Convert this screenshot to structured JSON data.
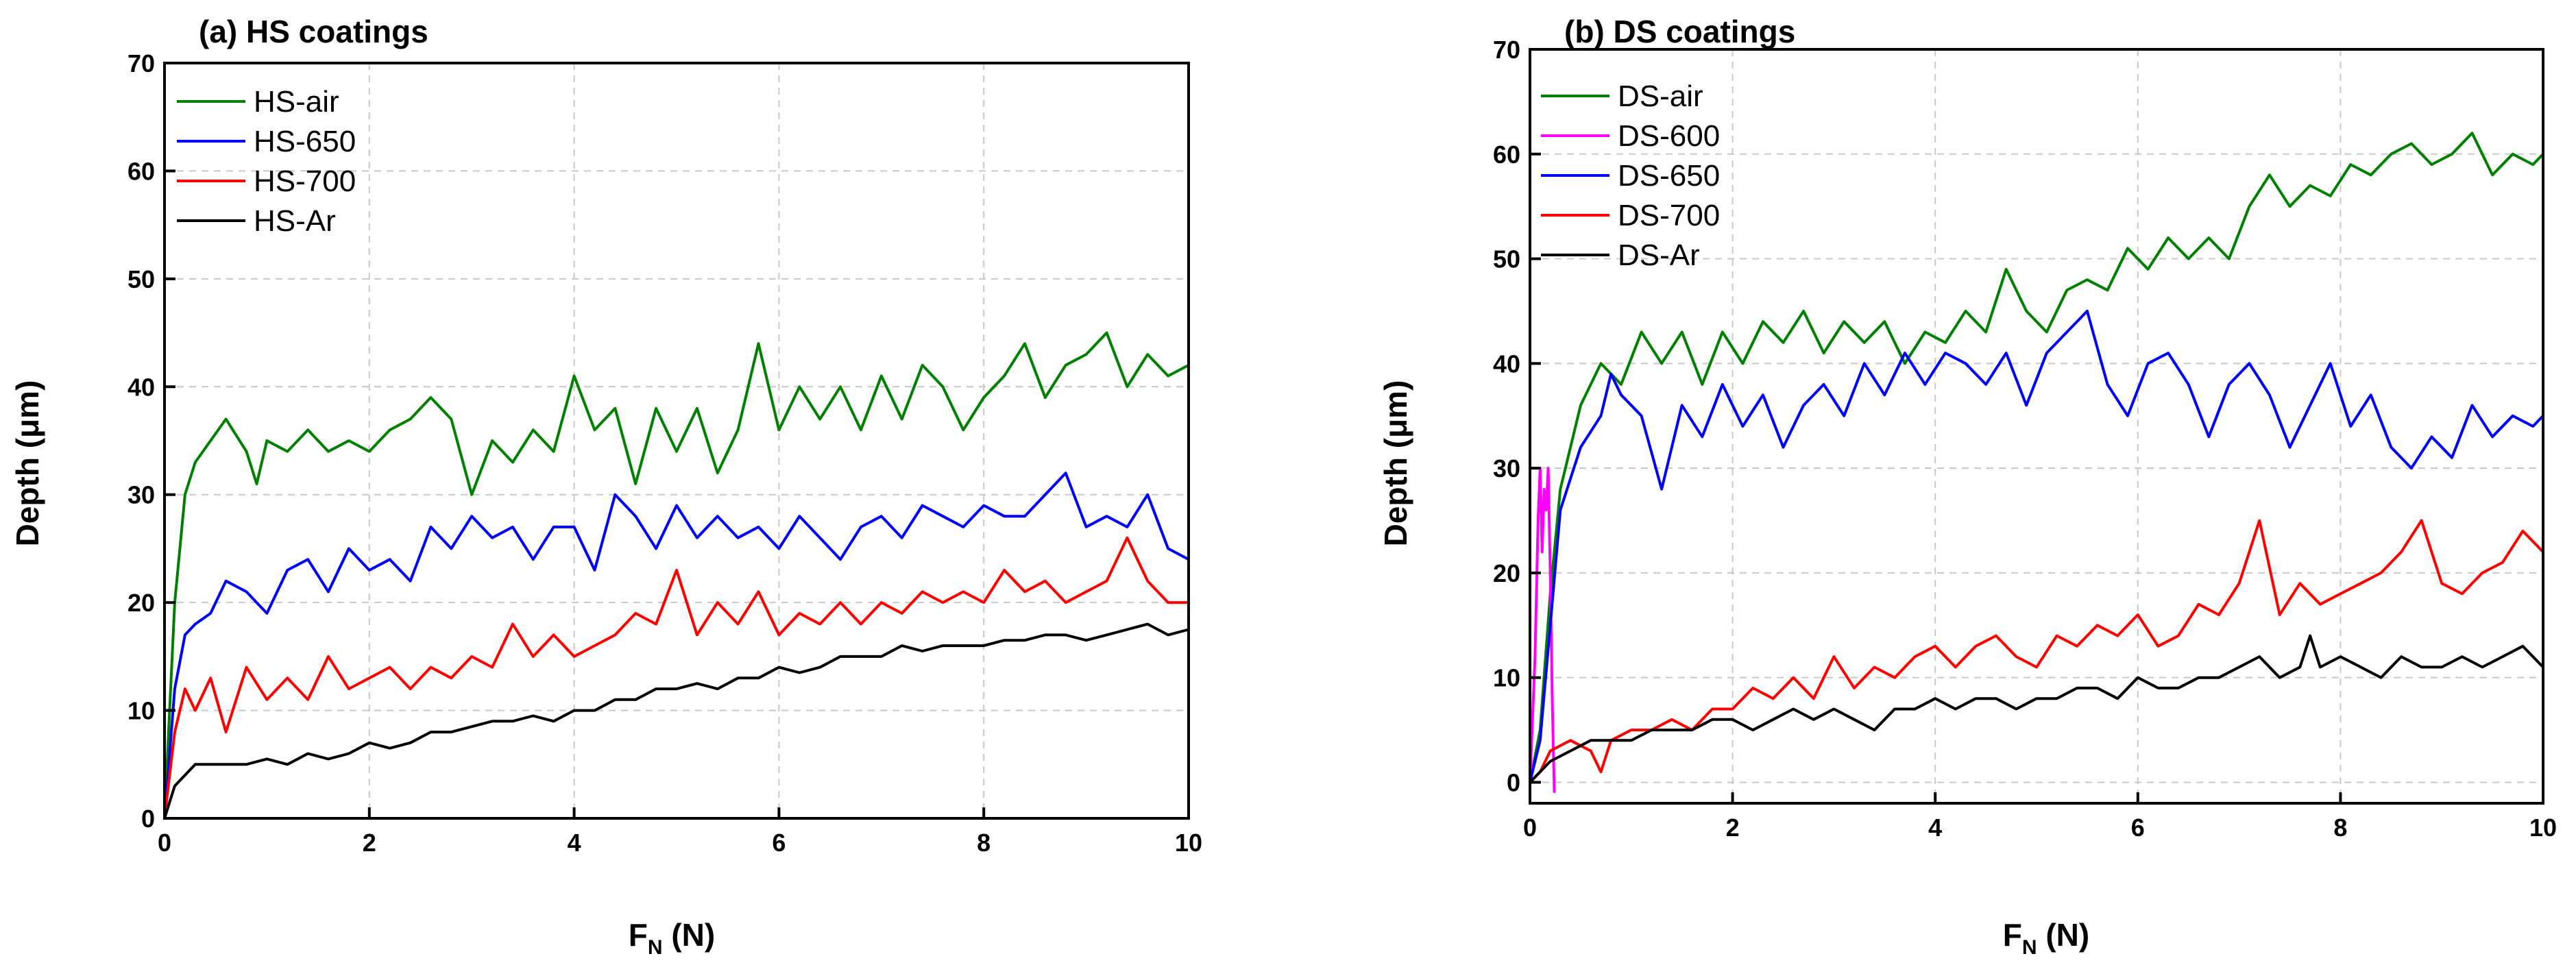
{
  "chart_data": [
    {
      "type": "line",
      "title": "(a) HS coatings",
      "xlabel": "F",
      "xlabel_sub": "N",
      "xlabel_unit": " (N)",
      "ylabel": "Depth (μm)",
      "xlim": [
        0,
        10
      ],
      "ylim": [
        0,
        70
      ],
      "xticks": [
        "0",
        "2",
        "4",
        "6",
        "8",
        "10"
      ],
      "yticks": [
        "0",
        "10",
        "20",
        "30",
        "40",
        "50",
        "60",
        "70"
      ],
      "grid": true,
      "legend_position": "top-left",
      "series": [
        {
          "name": "HS-air",
          "color": "#008000",
          "x": [
            0,
            0.1,
            0.2,
            0.3,
            0.45,
            0.6,
            0.8,
            0.9,
            1.0,
            1.2,
            1.4,
            1.6,
            1.8,
            2.0,
            2.2,
            2.4,
            2.6,
            2.8,
            3.0,
            3.2,
            3.4,
            3.6,
            3.8,
            4.0,
            4.2,
            4.4,
            4.6,
            4.8,
            5.0,
            5.2,
            5.4,
            5.6,
            5.8,
            6.0,
            6.2,
            6.4,
            6.6,
            6.8,
            7.0,
            7.2,
            7.4,
            7.6,
            7.8,
            8.0,
            8.2,
            8.4,
            8.6,
            8.8,
            9.0,
            9.2,
            9.4,
            9.6,
            9.8,
            10.0
          ],
          "y": [
            0,
            20,
            30,
            33,
            35,
            37,
            34,
            31,
            35,
            34,
            36,
            34,
            35,
            34,
            36,
            37,
            39,
            37,
            30,
            35,
            33,
            36,
            34,
            41,
            36,
            38,
            31,
            38,
            34,
            38,
            32,
            36,
            44,
            36,
            40,
            37,
            40,
            36,
            41,
            37,
            42,
            40,
            36,
            39,
            41,
            44,
            39,
            42,
            43,
            45,
            40,
            43,
            41,
            42
          ]
        },
        {
          "name": "HS-650",
          "color": "#0000ff",
          "x": [
            0,
            0.1,
            0.2,
            0.3,
            0.45,
            0.6,
            0.8,
            1.0,
            1.2,
            1.4,
            1.6,
            1.8,
            2.0,
            2.2,
            2.4,
            2.6,
            2.8,
            3.0,
            3.2,
            3.4,
            3.6,
            3.8,
            4.0,
            4.2,
            4.4,
            4.6,
            4.8,
            5.0,
            5.2,
            5.4,
            5.6,
            5.8,
            6.0,
            6.2,
            6.4,
            6.6,
            6.8,
            7.0,
            7.2,
            7.4,
            7.6,
            7.8,
            8.0,
            8.2,
            8.4,
            8.6,
            8.8,
            9.0,
            9.2,
            9.4,
            9.6,
            9.8,
            10.0
          ],
          "y": [
            0,
            12,
            17,
            18,
            19,
            22,
            21,
            19,
            23,
            24,
            21,
            25,
            23,
            24,
            22,
            27,
            25,
            28,
            26,
            27,
            24,
            27,
            27,
            23,
            30,
            28,
            25,
            29,
            26,
            28,
            26,
            27,
            25,
            28,
            26,
            24,
            27,
            28,
            26,
            29,
            28,
            27,
            29,
            28,
            28,
            30,
            32,
            27,
            28,
            27,
            30,
            25,
            24
          ]
        },
        {
          "name": "HS-700",
          "color": "#ff0000",
          "x": [
            0,
            0.1,
            0.2,
            0.3,
            0.45,
            0.6,
            0.8,
            1.0,
            1.2,
            1.4,
            1.6,
            1.8,
            2.0,
            2.2,
            2.4,
            2.6,
            2.8,
            3.0,
            3.2,
            3.4,
            3.6,
            3.8,
            4.0,
            4.2,
            4.4,
            4.6,
            4.8,
            5.0,
            5.2,
            5.4,
            5.6,
            5.8,
            6.0,
            6.2,
            6.4,
            6.6,
            6.8,
            7.0,
            7.2,
            7.4,
            7.6,
            7.8,
            8.0,
            8.2,
            8.4,
            8.6,
            8.8,
            9.0,
            9.2,
            9.4,
            9.6,
            9.8,
            10.0
          ],
          "y": [
            0,
            8,
            12,
            10,
            13,
            8,
            14,
            11,
            13,
            11,
            15,
            12,
            13,
            14,
            12,
            14,
            13,
            15,
            14,
            18,
            15,
            17,
            15,
            16,
            17,
            19,
            18,
            23,
            17,
            20,
            18,
            21,
            17,
            19,
            18,
            20,
            18,
            20,
            19,
            21,
            20,
            21,
            20,
            23,
            21,
            22,
            20,
            21,
            22,
            26,
            22,
            20,
            20
          ]
        },
        {
          "name": "HS-Ar",
          "color": "#000000",
          "x": [
            0,
            0.1,
            0.2,
            0.3,
            0.45,
            0.6,
            0.8,
            1.0,
            1.2,
            1.4,
            1.6,
            1.8,
            2.0,
            2.2,
            2.4,
            2.6,
            2.8,
            3.0,
            3.2,
            3.4,
            3.6,
            3.8,
            4.0,
            4.2,
            4.4,
            4.6,
            4.8,
            5.0,
            5.2,
            5.4,
            5.6,
            5.8,
            6.0,
            6.2,
            6.4,
            6.6,
            6.8,
            7.0,
            7.2,
            7.4,
            7.6,
            7.8,
            8.0,
            8.2,
            8.4,
            8.6,
            8.8,
            9.0,
            9.2,
            9.4,
            9.6,
            9.8,
            10.0
          ],
          "y": [
            0,
            3,
            4,
            5,
            5,
            5,
            5,
            5.5,
            5,
            6,
            5.5,
            6,
            7,
            6.5,
            7,
            8,
            8,
            8.5,
            9,
            9,
            9.5,
            9,
            10,
            10,
            11,
            11,
            12,
            12,
            12.5,
            12,
            13,
            13,
            14,
            13.5,
            14,
            15,
            15,
            15,
            16,
            15.5,
            16,
            16,
            16,
            16.5,
            16.5,
            17,
            17,
            16.5,
            17,
            17.5,
            18,
            17,
            17.5
          ]
        }
      ]
    },
    {
      "type": "line",
      "title": "(b) DS coatings",
      "xlabel": "F",
      "xlabel_sub": "N",
      "xlabel_unit": " (N)",
      "ylabel": "Depth (μm)",
      "xlim": [
        0,
        10
      ],
      "ylim": [
        -2,
        70
      ],
      "xticks": [
        "0",
        "2",
        "4",
        "6",
        "8",
        "10"
      ],
      "yticks": [
        "0",
        "10",
        "20",
        "30",
        "40",
        "50",
        "60",
        "70"
      ],
      "grid": true,
      "legend_position": "top-left",
      "series": [
        {
          "name": "DS-air",
          "color": "#008000",
          "x": [
            0,
            0.1,
            0.2,
            0.3,
            0.5,
            0.7,
            0.9,
            1.1,
            1.3,
            1.5,
            1.7,
            1.9,
            2.1,
            2.3,
            2.5,
            2.7,
            2.9,
            3.1,
            3.3,
            3.5,
            3.7,
            3.9,
            4.1,
            4.3,
            4.5,
            4.7,
            4.9,
            5.1,
            5.3,
            5.5,
            5.7,
            5.9,
            6.1,
            6.3,
            6.5,
            6.7,
            6.9,
            7.1,
            7.3,
            7.5,
            7.7,
            7.9,
            8.1,
            8.3,
            8.5,
            8.7,
            8.9,
            9.1,
            9.3,
            9.5,
            9.7,
            9.9,
            10.0
          ],
          "y": [
            0,
            5,
            18,
            28,
            36,
            40,
            38,
            43,
            40,
            43,
            38,
            43,
            40,
            44,
            42,
            45,
            41,
            44,
            42,
            44,
            40,
            43,
            42,
            45,
            43,
            49,
            45,
            43,
            47,
            48,
            47,
            51,
            49,
            52,
            50,
            52,
            50,
            55,
            58,
            55,
            57,
            56,
            59,
            58,
            60,
            61,
            59,
            60,
            62,
            58,
            60,
            59,
            60
          ]
        },
        {
          "name": "DS-600",
          "color": "#ff00ff",
          "x": [
            0,
            0.05,
            0.08,
            0.1,
            0.12,
            0.14,
            0.16,
            0.18,
            0.2,
            0.22,
            0.24
          ],
          "y": [
            0,
            12,
            25,
            30,
            22,
            28,
            26,
            30,
            20,
            8,
            -1
          ]
        },
        {
          "name": "DS-650",
          "color": "#0000ff",
          "x": [
            0,
            0.1,
            0.2,
            0.3,
            0.5,
            0.7,
            0.8,
            0.9,
            1.1,
            1.3,
            1.5,
            1.7,
            1.9,
            2.1,
            2.3,
            2.5,
            2.7,
            2.9,
            3.1,
            3.3,
            3.5,
            3.7,
            3.9,
            4.1,
            4.3,
            4.5,
            4.7,
            4.9,
            5.1,
            5.3,
            5.5,
            5.7,
            5.9,
            6.1,
            6.3,
            6.5,
            6.7,
            6.9,
            7.1,
            7.3,
            7.5,
            7.7,
            7.9,
            8.1,
            8.3,
            8.5,
            8.7,
            8.9,
            9.1,
            9.3,
            9.5,
            9.7,
            9.9,
            10.0
          ],
          "y": [
            0,
            4,
            15,
            26,
            32,
            35,
            39,
            37,
            35,
            28,
            36,
            33,
            38,
            34,
            37,
            32,
            36,
            38,
            35,
            40,
            37,
            41,
            38,
            41,
            40,
            38,
            41,
            36,
            41,
            43,
            45,
            38,
            35,
            40,
            41,
            38,
            33,
            38,
            40,
            37,
            32,
            36,
            40,
            34,
            37,
            32,
            30,
            33,
            31,
            36,
            33,
            35,
            34,
            35
          ]
        },
        {
          "name": "DS-700",
          "color": "#ff0000",
          "x": [
            0,
            0.1,
            0.2,
            0.4,
            0.6,
            0.7,
            0.8,
            1.0,
            1.2,
            1.4,
            1.6,
            1.8,
            2.0,
            2.2,
            2.4,
            2.6,
            2.8,
            3.0,
            3.2,
            3.4,
            3.6,
            3.8,
            4.0,
            4.2,
            4.4,
            4.6,
            4.8,
            5.0,
            5.2,
            5.4,
            5.6,
            5.8,
            6.0,
            6.2,
            6.4,
            6.6,
            6.8,
            7.0,
            7.2,
            7.4,
            7.6,
            7.8,
            8.0,
            8.2,
            8.4,
            8.6,
            8.8,
            9.0,
            9.2,
            9.4,
            9.6,
            9.8,
            10.0
          ],
          "y": [
            0,
            1,
            3,
            4,
            3,
            1,
            4,
            5,
            5,
            6,
            5,
            7,
            7,
            9,
            8,
            10,
            8,
            12,
            9,
            11,
            10,
            12,
            13,
            11,
            13,
            14,
            12,
            11,
            14,
            13,
            15,
            14,
            16,
            13,
            14,
            17,
            16,
            19,
            25,
            16,
            19,
            17,
            18,
            19,
            20,
            22,
            25,
            19,
            18,
            20,
            21,
            24,
            22
          ]
        },
        {
          "name": "DS-Ar",
          "color": "#000000",
          "x": [
            0,
            0.1,
            0.2,
            0.4,
            0.6,
            0.8,
            1.0,
            1.2,
            1.4,
            1.6,
            1.8,
            2.0,
            2.2,
            2.4,
            2.6,
            2.8,
            3.0,
            3.2,
            3.4,
            3.6,
            3.8,
            4.0,
            4.2,
            4.4,
            4.6,
            4.8,
            5.0,
            5.2,
            5.4,
            5.6,
            5.8,
            6.0,
            6.2,
            6.4,
            6.6,
            6.8,
            7.0,
            7.2,
            7.4,
            7.6,
            7.7,
            7.8,
            8.0,
            8.2,
            8.4,
            8.6,
            8.8,
            9.0,
            9.2,
            9.4,
            9.6,
            9.8,
            10.0
          ],
          "y": [
            0,
            1,
            2,
            3,
            4,
            4,
            4,
            5,
            5,
            5,
            6,
            6,
            5,
            6,
            7,
            6,
            7,
            6,
            5,
            7,
            7,
            8,
            7,
            8,
            8,
            7,
            8,
            8,
            9,
            9,
            8,
            10,
            9,
            9,
            10,
            10,
            11,
            12,
            10,
            11,
            14,
            11,
            12,
            11,
            10,
            12,
            11,
            11,
            12,
            11,
            12,
            13,
            11
          ]
        }
      ]
    }
  ]
}
